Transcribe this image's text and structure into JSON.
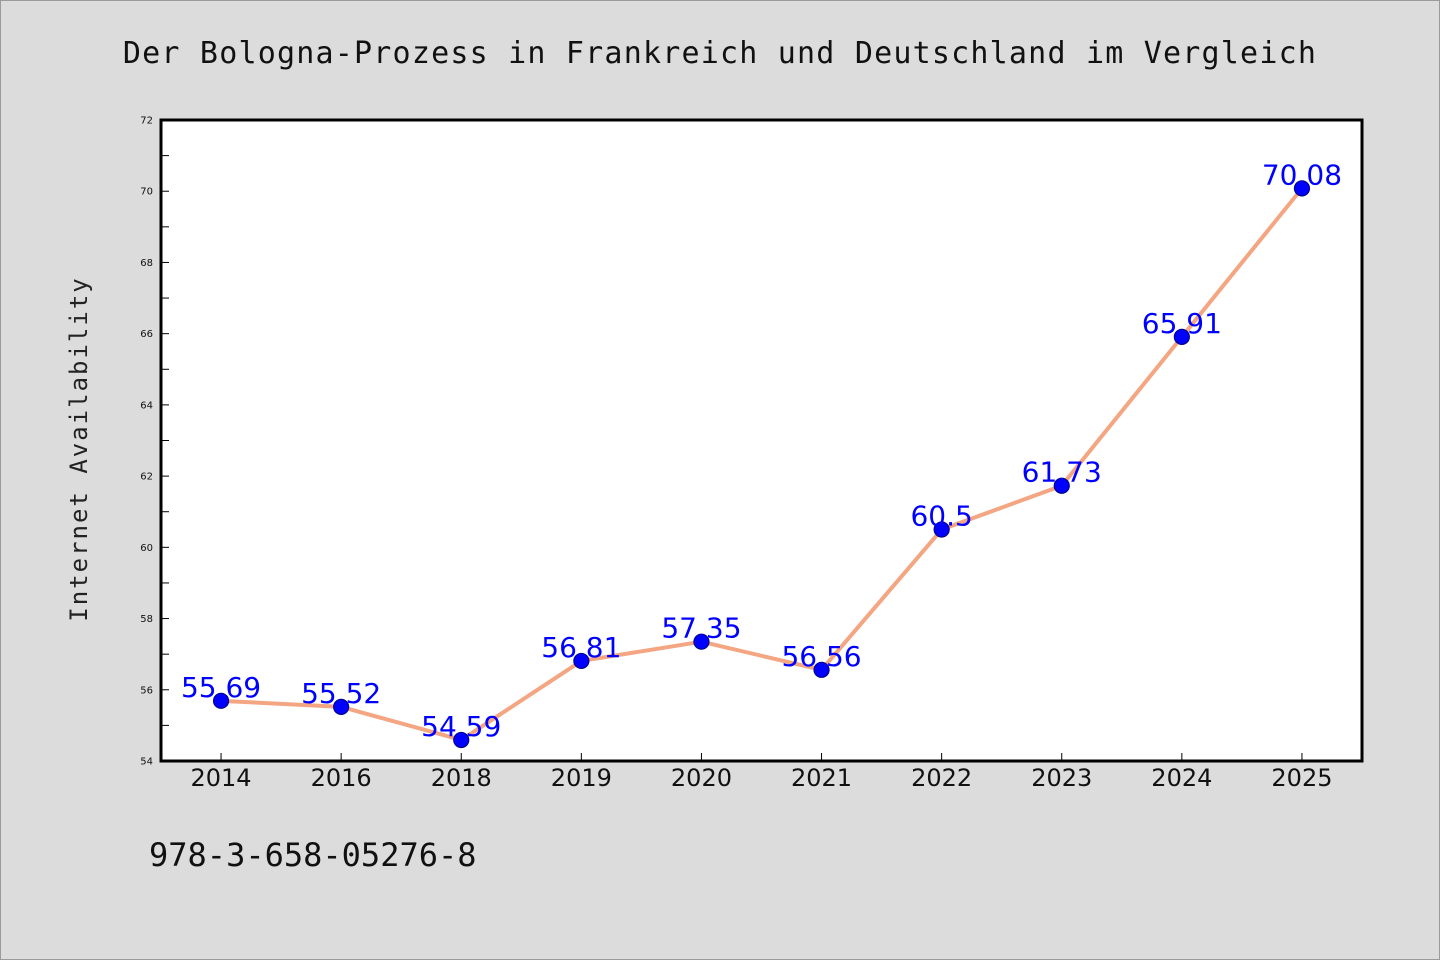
{
  "chart_data": {
    "type": "line",
    "title": "Der Bologna-Prozess in Frankreich und Deutschland im Vergleich",
    "xlabel": "",
    "ylabel": "Internet Availability",
    "categories": [
      "2014",
      "2016",
      "2018",
      "2019",
      "2020",
      "2021",
      "2022",
      "2023",
      "2024",
      "2025"
    ],
    "values": [
      55.69,
      55.52,
      54.59,
      56.81,
      57.35,
      56.56,
      60.5,
      61.73,
      65.91,
      70.08
    ],
    "data_labels": [
      "55.69",
      "55.52",
      "54.59",
      "56.81",
      "57.35",
      "56.56",
      "60.5",
      "61.73",
      "65.91",
      "70.08"
    ],
    "ylim": [
      54,
      72
    ],
    "y_ticks": [
      "54",
      "56",
      "58",
      "60",
      "62",
      "64",
      "66",
      "68",
      "70",
      "72"
    ],
    "grid": false,
    "legend": "none",
    "colors": {
      "line": "#f4a582",
      "marker": "#0000ff",
      "marker_edge": "#00008b",
      "label": "#0000ff",
      "background": "#dcdcdc",
      "plot_area": "#ffffff"
    }
  },
  "footer": {
    "code": "978-3-658-05276-8"
  }
}
